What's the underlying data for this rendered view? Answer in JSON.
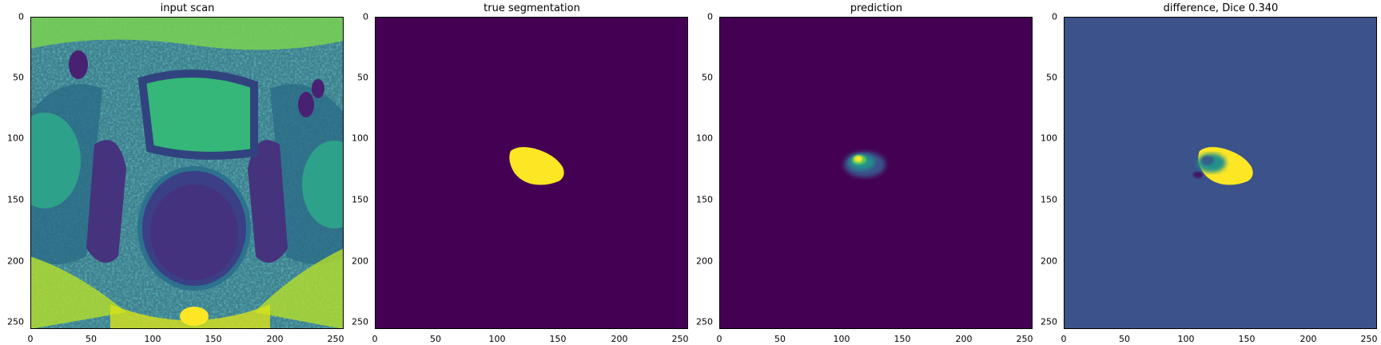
{
  "panels": [
    {
      "title": "input scan",
      "xticks": [
        "0",
        "50",
        "100",
        "150",
        "200",
        "250"
      ],
      "yticks": [
        "0",
        "50",
        "100",
        "150",
        "200",
        "250"
      ]
    },
    {
      "title": "true segmentation",
      "xticks": [
        "0",
        "50",
        "100",
        "150",
        "200",
        "250"
      ],
      "yticks": [
        "0",
        "50",
        "100",
        "150",
        "200",
        "250"
      ]
    },
    {
      "title": "prediction",
      "xticks": [
        "0",
        "50",
        "100",
        "150",
        "200",
        "250"
      ],
      "yticks": [
        "0",
        "50",
        "100",
        "150",
        "200",
        "250"
      ]
    },
    {
      "title": "difference, Dice 0.340",
      "xticks": [
        "0",
        "50",
        "100",
        "150",
        "200",
        "250"
      ],
      "yticks": [
        "0",
        "50",
        "100",
        "150",
        "200",
        "250"
      ]
    }
  ],
  "colors": {
    "viridis_dark": "#440154",
    "viridis_mid_blue": "#3b528b",
    "viridis_teal": "#21918c",
    "viridis_green": "#5ec962",
    "viridis_yellow": "#fde725"
  }
}
